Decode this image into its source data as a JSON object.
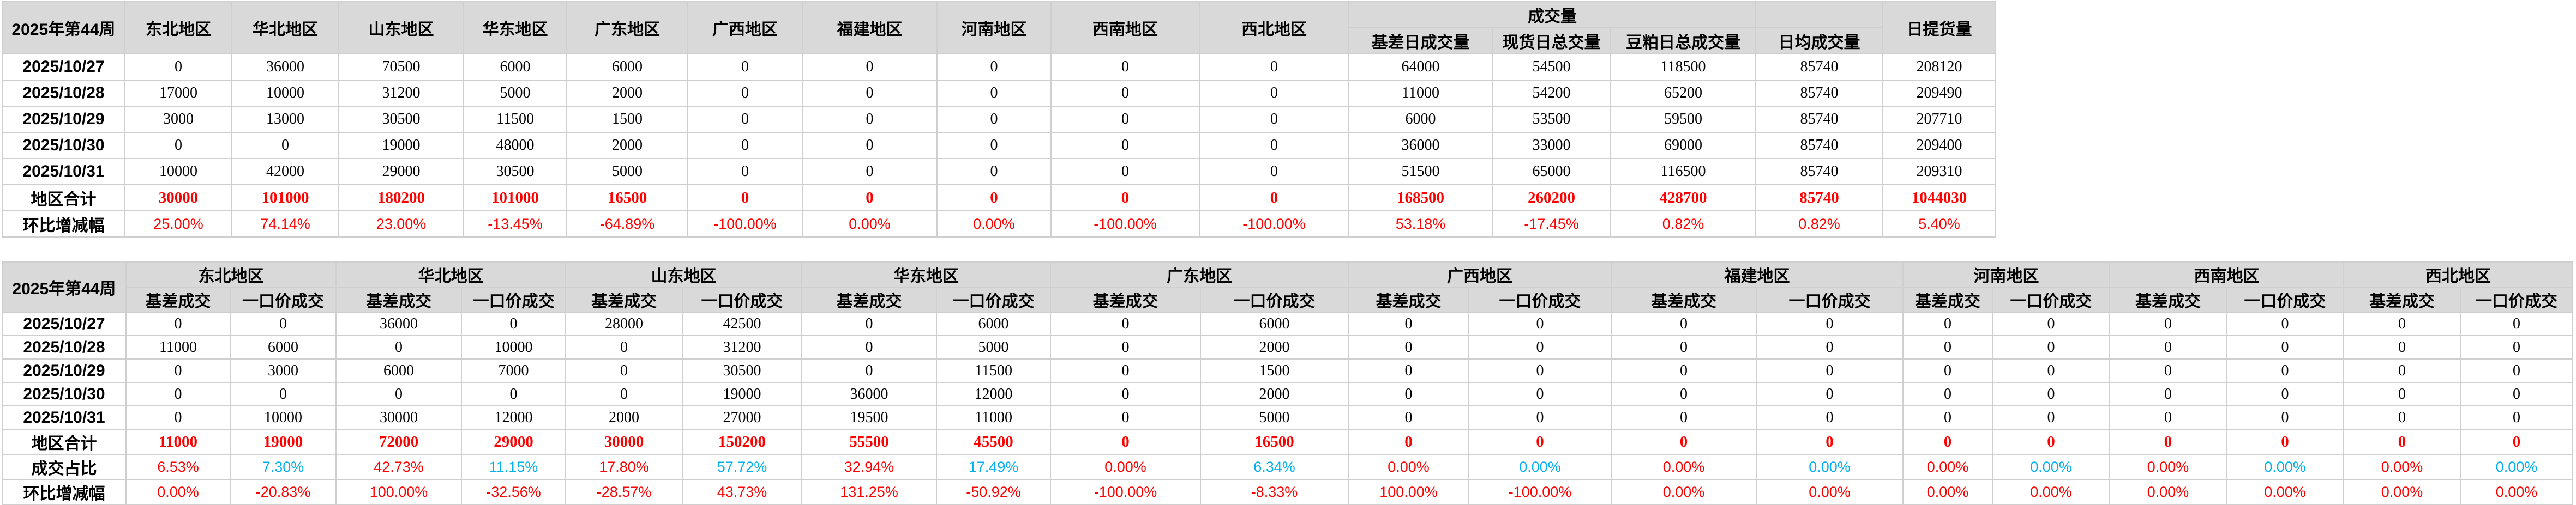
{
  "colors": {
    "accent_red": "#ff0000",
    "accent_blue": "#00b0f0",
    "header_bg": "#d9d9d9",
    "grid": "#cfcfcf"
  },
  "table1": {
    "title_cell": "2025年第44周",
    "region_headers": [
      "东北地区",
      "华北地区",
      "山东地区",
      "华东地区",
      "广东地区",
      "广西地区",
      "福建地区",
      "河南地区",
      "西南地区",
      "西北地区"
    ],
    "volume_group_label": "成交量",
    "volume_headers": [
      "基差日成交量",
      "现货日总交量",
      "豆粕日总成交量",
      "日均成交量"
    ],
    "delivery_header": "日提货量",
    "rows": [
      {
        "label": "2025/10/27",
        "values": [
          "0",
          "36000",
          "70500",
          "6000",
          "6000",
          "0",
          "0",
          "0",
          "0",
          "0",
          "64000",
          "54500",
          "118500",
          "85740",
          "208120"
        ]
      },
      {
        "label": "2025/10/28",
        "values": [
          "17000",
          "10000",
          "31200",
          "5000",
          "2000",
          "0",
          "0",
          "0",
          "0",
          "0",
          "11000",
          "54200",
          "65200",
          "85740",
          "209490"
        ]
      },
      {
        "label": "2025/10/29",
        "values": [
          "3000",
          "13000",
          "30500",
          "11500",
          "1500",
          "0",
          "0",
          "0",
          "0",
          "0",
          "6000",
          "53500",
          "59500",
          "85740",
          "207710"
        ]
      },
      {
        "label": "2025/10/30",
        "values": [
          "0",
          "0",
          "19000",
          "48000",
          "2000",
          "0",
          "0",
          "0",
          "0",
          "0",
          "36000",
          "33000",
          "69000",
          "85740",
          "209400"
        ]
      },
      {
        "label": "2025/10/31",
        "values": [
          "10000",
          "42000",
          "29000",
          "30500",
          "5000",
          "0",
          "0",
          "0",
          "0",
          "0",
          "51500",
          "65000",
          "116500",
          "85740",
          "209310"
        ]
      }
    ],
    "total_row": {
      "label": "地区合计",
      "values": [
        "30000",
        "101000",
        "180200",
        "101000",
        "16500",
        "0",
        "0",
        "0",
        "0",
        "0",
        "168500",
        "260200",
        "428700",
        "85740",
        "1044030"
      ]
    },
    "pct_row": {
      "label": "环比增减幅",
      "values": [
        "25.00%",
        "74.14%",
        "23.00%",
        "-13.45%",
        "-64.89%",
        "-100.00%",
        "0.00%",
        "0.00%",
        "-100.00%",
        "-100.00%",
        "53.18%",
        "-17.45%",
        "0.82%",
        "0.82%",
        "5.40%"
      ]
    }
  },
  "table2": {
    "title_cell": "2025年第44周",
    "region_headers": [
      "东北地区",
      "华北地区",
      "山东地区",
      "华东地区",
      "广东地区",
      "广西地区",
      "福建地区",
      "河南地区",
      "西南地区",
      "西北地区"
    ],
    "sub_headers": [
      "基差成交",
      "一口价成交"
    ],
    "rows": [
      {
        "label": "2025/10/27",
        "values": [
          "0",
          "0",
          "36000",
          "0",
          "28000",
          "42500",
          "0",
          "6000",
          "0",
          "6000",
          "0",
          "0",
          "0",
          "0",
          "0",
          "0",
          "0",
          "0",
          "0",
          "0"
        ]
      },
      {
        "label": "2025/10/28",
        "values": [
          "11000",
          "6000",
          "0",
          "10000",
          "0",
          "31200",
          "0",
          "5000",
          "0",
          "2000",
          "0",
          "0",
          "0",
          "0",
          "0",
          "0",
          "0",
          "0",
          "0",
          "0"
        ]
      },
      {
        "label": "2025/10/29",
        "values": [
          "0",
          "3000",
          "6000",
          "7000",
          "0",
          "30500",
          "0",
          "11500",
          "0",
          "1500",
          "0",
          "0",
          "0",
          "0",
          "0",
          "0",
          "0",
          "0",
          "0",
          "0"
        ]
      },
      {
        "label": "2025/10/30",
        "values": [
          "0",
          "0",
          "0",
          "0",
          "0",
          "19000",
          "36000",
          "12000",
          "0",
          "2000",
          "0",
          "0",
          "0",
          "0",
          "0",
          "0",
          "0",
          "0",
          "0",
          "0"
        ]
      },
      {
        "label": "2025/10/31",
        "values": [
          "0",
          "10000",
          "30000",
          "12000",
          "2000",
          "27000",
          "19500",
          "11000",
          "0",
          "5000",
          "0",
          "0",
          "0",
          "0",
          "0",
          "0",
          "0",
          "0",
          "0",
          "0"
        ]
      }
    ],
    "total_row": {
      "label": "地区合计",
      "values": [
        "11000",
        "19000",
        "72000",
        "29000",
        "30000",
        "150200",
        "55500",
        "45500",
        "0",
        "16500",
        "0",
        "0",
        "0",
        "0",
        "0",
        "0",
        "0",
        "0",
        "0",
        "0"
      ]
    },
    "share_row": {
      "label": "成交占比",
      "values": [
        "6.53%",
        "7.30%",
        "42.73%",
        "11.15%",
        "17.80%",
        "57.72%",
        "32.94%",
        "17.49%",
        "0.00%",
        "6.34%",
        "0.00%",
        "0.00%",
        "0.00%",
        "0.00%",
        "0.00%",
        "0.00%",
        "0.00%",
        "0.00%",
        "0.00%",
        "0.00%"
      ]
    },
    "pct_row": {
      "label": "环比增减幅",
      "values": [
        "0.00%",
        "-20.83%",
        "100.00%",
        "-32.56%",
        "-28.57%",
        "43.73%",
        "131.25%",
        "-50.92%",
        "-100.00%",
        "-8.33%",
        "100.00%",
        "-100.00%",
        "0.00%",
        "0.00%",
        "0.00%",
        "0.00%",
        "0.00%",
        "0.00%",
        "0.00%",
        "0.00%"
      ]
    }
  }
}
